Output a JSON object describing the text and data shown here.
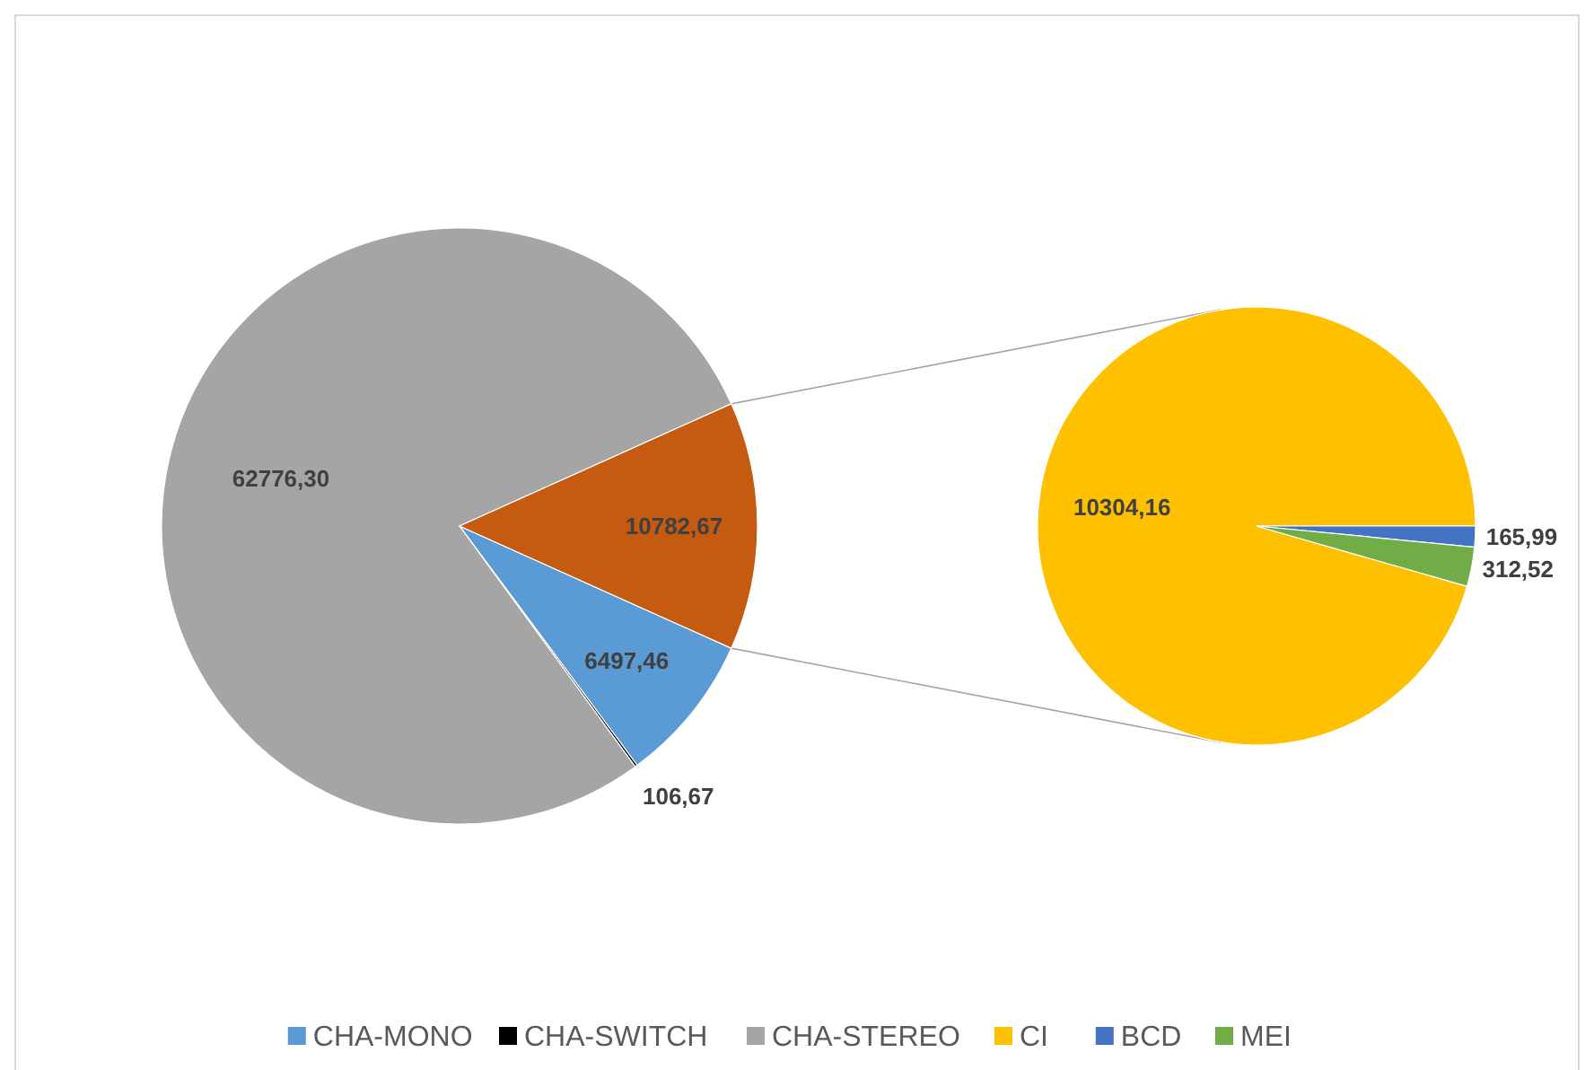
{
  "chart_data": [
    {
      "type": "pie",
      "categories": [
        "CHA-MONO",
        "CHA-SWITCH",
        "CHA-STEREO",
        null
      ],
      "values": [
        6497.46,
        106.67,
        62776.3,
        10782.67
      ],
      "colors": [
        "#5b9bd5",
        "#000000",
        "#a5a5a5",
        "#c55a11"
      ],
      "value_labels": [
        "6497,46",
        "106,67",
        "62776,30",
        "10782,67"
      ],
      "legend": "bottom"
    },
    {
      "type": "pie",
      "categories": [
        "CI",
        "BCD",
        "MEI"
      ],
      "values": [
        10304.16,
        165.99,
        312.52
      ],
      "colors": [
        "#ffc000",
        "#4472c4",
        "#70ad47"
      ],
      "value_labels": [
        "10304,16",
        "165,99",
        "312,52"
      ],
      "legend": "bottom"
    }
  ]
}
